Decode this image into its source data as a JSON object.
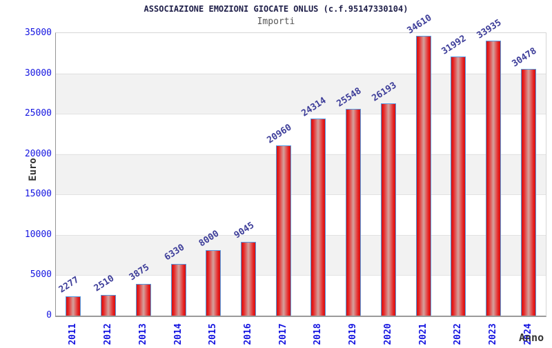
{
  "chart_data": {
    "type": "bar",
    "title": "ASSOCIAZIONE EMOZIONI GIOCATE ONLUS (c.f.95147330104)",
    "subtitle": "Importi",
    "categories": [
      "2011",
      "2012",
      "2013",
      "2014",
      "2015",
      "2016",
      "2017",
      "2018",
      "2019",
      "2020",
      "2021",
      "2022",
      "2023",
      "2024"
    ],
    "values": [
      2277,
      2510,
      3875,
      6330,
      8000,
      9045,
      20960,
      24314,
      25548,
      26193,
      34610,
      31992,
      33935,
      30478
    ],
    "xlabel": "Anno",
    "ylabel": "Euro",
    "ylim": [
      0,
      35000
    ],
    "yticks": [
      0,
      5000,
      10000,
      15000,
      20000,
      25000,
      30000,
      35000
    ],
    "grid": "horizontal-bands",
    "legend": "none",
    "band_colors": [
      "#ffffff",
      "#f2f2f2"
    ],
    "bar_gradient_edge": "#cf1313",
    "bar_gradient_mid": "#e82020",
    "bar_gradient_center": "#d5a19d",
    "bar_border_color": "#539ae2",
    "value_label_color": "#3d3d99",
    "tick_label_color": "#1414e0",
    "title_color": "#20204a",
    "subtitle_color": "#555555"
  }
}
